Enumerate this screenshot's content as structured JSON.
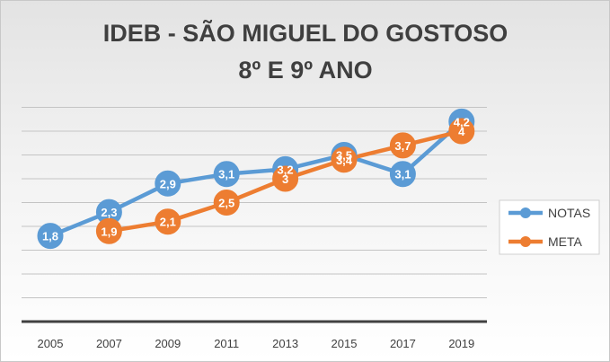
{
  "chart_data": {
    "type": "line",
    "title": "IDEB - SÃO MIGUEL DO GOSTOSO",
    "subtitle": "8º E 9º ANO",
    "categories": [
      "2005",
      "2007",
      "2009",
      "2011",
      "2013",
      "2015",
      "2017",
      "2019"
    ],
    "series": [
      {
        "name": "NOTAS",
        "color": "#5b9bd5",
        "values": [
          1.8,
          2.3,
          2.9,
          3.1,
          3.2,
          3.5,
          3.1,
          4.2
        ],
        "labels": [
          "1,8",
          "2,3",
          "2,9",
          "3,1",
          "3,2",
          "3,5",
          "3,1",
          "4,2"
        ]
      },
      {
        "name": "META",
        "color": "#ed7d31",
        "values": [
          null,
          1.9,
          2.1,
          2.5,
          3.0,
          3.4,
          3.7,
          4.0
        ],
        "labels": [
          null,
          "1,9",
          "2,1",
          "2,5",
          "3",
          "3,4",
          "3,7",
          "4"
        ]
      }
    ],
    "ylim": [
      0,
      4.5
    ],
    "grid": true,
    "legend_position": "right",
    "xlabel": "",
    "ylabel": ""
  }
}
